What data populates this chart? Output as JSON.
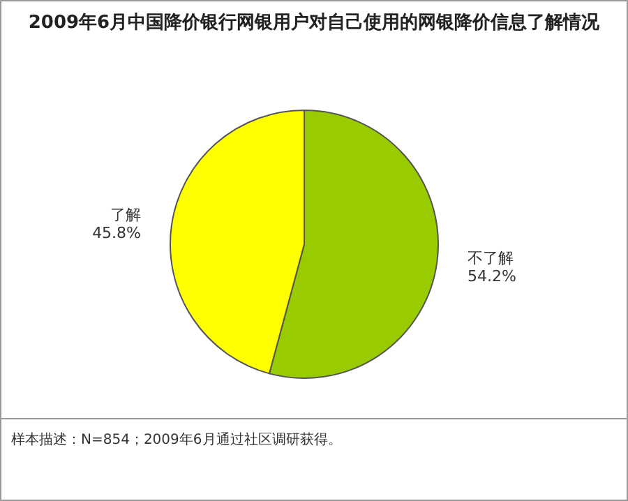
{
  "chart_data": {
    "type": "pie",
    "title": "2009年6月中国降价银行网银用户对自己使用的网银降价信息了解情况",
    "categories": [
      "不了解",
      "了解"
    ],
    "values": [
      54.2,
      45.8
    ],
    "colors": [
      "#99cc00",
      "#ffff00"
    ],
    "value_labels": [
      "54.2%",
      "45.8%"
    ],
    "annotations": [
      "样本描述：N=854；2009年6月通过社区调研获得。"
    ]
  }
}
